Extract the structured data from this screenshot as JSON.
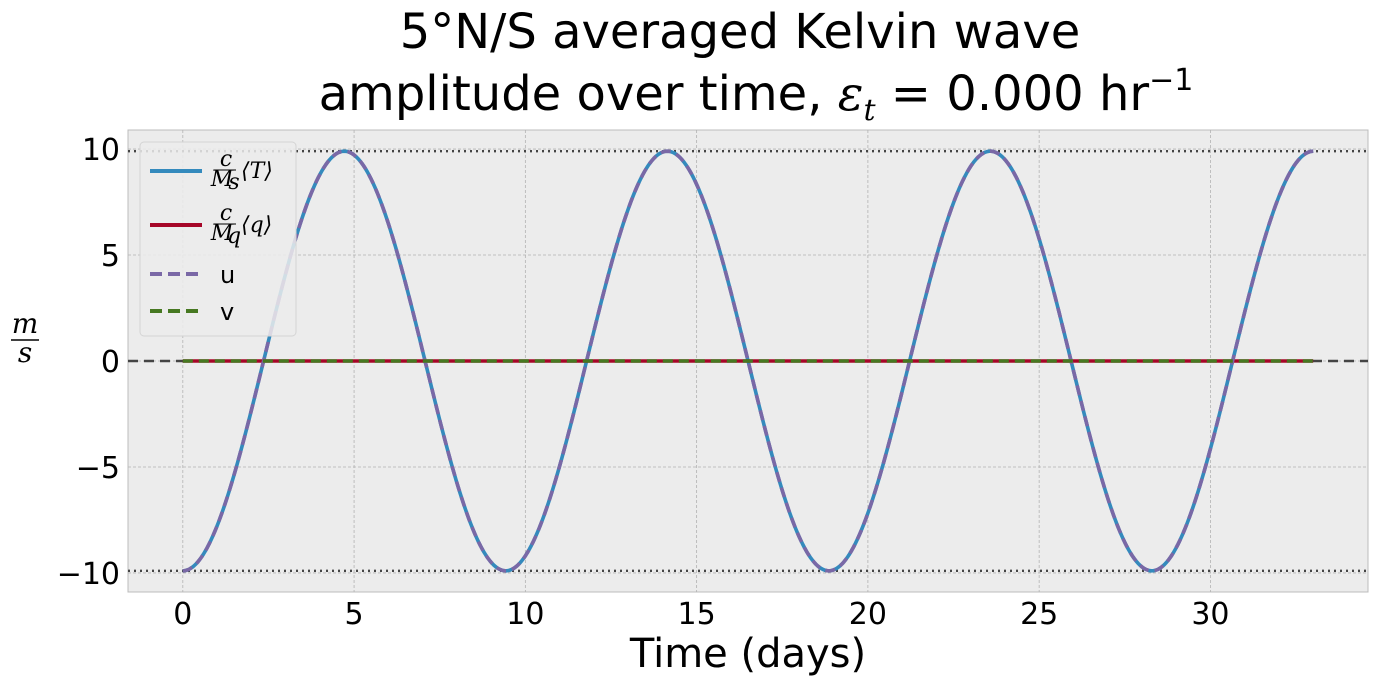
{
  "chart_data": {
    "type": "line",
    "title_line1": "5°N/S averaged Kelvin wave",
    "title_line2_prefix": "amplitude over time, ",
    "title_eps_symbol": "ε",
    "title_eps_sub": "t",
    "title_line2_value": " = 0.000 hr",
    "title_unit_exponent": "−1",
    "xlabel": "Time (days)",
    "ylabel_numerator": "m",
    "ylabel_denominator": "s",
    "xlim": [
      -1.6,
      34.6
    ],
    "ylim": [
      -10.9,
      10.9
    ],
    "x_ticks": [
      0,
      5,
      10,
      15,
      20,
      25,
      30
    ],
    "y_ticks": [
      10,
      5,
      0,
      -5,
      -10
    ],
    "y_tick_labels": [
      "10",
      "5",
      "0",
      "−5",
      "−10"
    ],
    "grid": true,
    "legend_position": "upper-left",
    "background_color": "#ececec",
    "reference_lines": [
      {
        "y": 9.9,
        "style": "dotted",
        "color": "#444444"
      },
      {
        "y": -9.9,
        "style": "dotted",
        "color": "#444444"
      },
      {
        "y": 0,
        "style": "dashed",
        "color": "#444444"
      }
    ],
    "wave": {
      "amplitude": 9.9,
      "period_days": 9.43,
      "x_start": 0,
      "x_end": 33
    },
    "series": [
      {
        "name": "c/M_s ⟨T⟩",
        "legend_num": "c",
        "legend_den": "M",
        "legend_den_sub": "s",
        "legend_bracket": "⟨T⟩",
        "color": "#348abd",
        "style": "solid",
        "kind": "wave_negcos"
      },
      {
        "name": "c/M_q ⟨q⟩",
        "legend_num": "c",
        "legend_den": "M",
        "legend_den_sub": "q",
        "legend_bracket": "⟨q⟩",
        "color": "#a60628",
        "style": "solid",
        "kind": "zero"
      },
      {
        "name": "u",
        "color": "#7a68a6",
        "style": "dashed",
        "kind": "wave_negcos"
      },
      {
        "name": "v",
        "color": "#467821",
        "style": "dashed",
        "kind": "zero"
      }
    ]
  }
}
